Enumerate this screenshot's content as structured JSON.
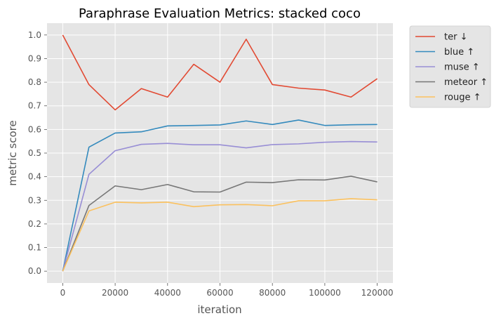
{
  "chart_data": {
    "type": "line",
    "title": "Paraphrase Evaluation Metrics: stacked coco",
    "xlabel": "iteration",
    "ylabel": "metric score",
    "xlim": [
      -6000,
      126000
    ],
    "ylim": [
      -0.05,
      1.05
    ],
    "xticks": [
      0,
      20000,
      40000,
      60000,
      80000,
      100000,
      120000
    ],
    "yticks": [
      0.0,
      0.1,
      0.2,
      0.3,
      0.4,
      0.5,
      0.6,
      0.7,
      0.8,
      0.9,
      1.0
    ],
    "grid": true,
    "legend_position": "outside-top-right",
    "x": [
      0,
      10000,
      20000,
      30000,
      40000,
      50000,
      60000,
      70000,
      80000,
      90000,
      100000,
      110000,
      120000
    ],
    "series": [
      {
        "name": "ter ↓",
        "color": "#E24A33",
        "values": [
          1.0,
          0.79,
          0.683,
          0.773,
          0.737,
          0.876,
          0.8,
          0.982,
          0.79,
          0.775,
          0.767,
          0.737,
          0.815
        ]
      },
      {
        "name": "blue ↑",
        "color": "#348ABD",
        "values": [
          0.0,
          0.525,
          0.585,
          0.59,
          0.615,
          0.617,
          0.619,
          0.636,
          0.621,
          0.64,
          0.617,
          0.62,
          0.621
        ]
      },
      {
        "name": "muse ↑",
        "color": "#988ED5",
        "values": [
          0.0,
          0.41,
          0.51,
          0.537,
          0.541,
          0.535,
          0.535,
          0.522,
          0.536,
          0.539,
          0.546,
          0.549,
          0.547
        ]
      },
      {
        "name": "meteor ↑",
        "color": "#777777",
        "values": [
          0.0,
          0.278,
          0.361,
          0.345,
          0.367,
          0.336,
          0.335,
          0.377,
          0.375,
          0.387,
          0.386,
          0.402,
          0.378
        ]
      },
      {
        "name": "rouge ↑",
        "color": "#FBC15E",
        "values": [
          0.0,
          0.255,
          0.292,
          0.289,
          0.292,
          0.273,
          0.281,
          0.282,
          0.277,
          0.298,
          0.298,
          0.307,
          0.302
        ]
      }
    ],
    "colors": {
      "plot_background": "#E5E5E5",
      "grid": "#FFFFFF",
      "tick_text": "#555555"
    }
  }
}
